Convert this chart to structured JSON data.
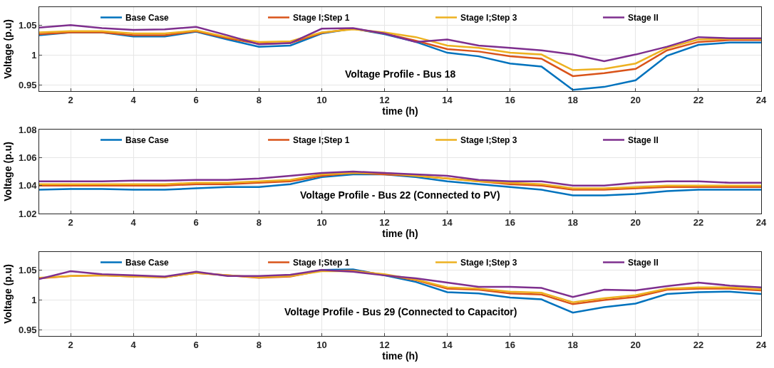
{
  "chart_data": [
    {
      "type": "line",
      "title": "Voltage Profile - Bus 18",
      "xlabel": "time (h)",
      "ylabel": "Voltage (p.u)",
      "x": [
        1,
        2,
        3,
        4,
        5,
        6,
        7,
        8,
        9,
        10,
        11,
        12,
        13,
        14,
        15,
        16,
        17,
        18,
        19,
        20,
        21,
        22,
        23,
        24
      ],
      "xlim": [
        1,
        24
      ],
      "xticks": [
        2,
        4,
        6,
        8,
        10,
        12,
        14,
        16,
        18,
        20,
        22,
        24
      ],
      "ylim": [
        0.94,
        1.08
      ],
      "yticks": [
        0.95,
        1,
        1.05
      ],
      "grid": true,
      "legend": "top",
      "series": [
        {
          "name": "Base Case",
          "color": "#0072bd",
          "values": [
            1.033,
            1.038,
            1.038,
            1.031,
            1.031,
            1.039,
            1.026,
            1.014,
            1.016,
            1.036,
            1.044,
            1.035,
            1.022,
            1.004,
            0.998,
            0.986,
            0.981,
            0.942,
            0.947,
            0.958,
            0.999,
            1.017,
            1.021,
            1.021
          ]
        },
        {
          "name": "Stage I;Step 1",
          "color": "#d95319",
          "values": [
            1.035,
            1.038,
            1.038,
            1.033,
            1.033,
            1.04,
            1.028,
            1.019,
            1.02,
            1.037,
            1.044,
            1.036,
            1.024,
            1.01,
            1.006,
            0.998,
            0.994,
            0.965,
            0.97,
            0.977,
            1.008,
            1.022,
            1.025,
            1.025
          ]
        },
        {
          "name": "Stage I;Step 3",
          "color": "#edb120",
          "values": [
            1.038,
            1.04,
            1.04,
            1.036,
            1.036,
            1.041,
            1.03,
            1.022,
            1.023,
            1.038,
            1.043,
            1.038,
            1.03,
            1.016,
            1.012,
            1.004,
            1.001,
            0.975,
            0.977,
            0.986,
            1.012,
            1.026,
            1.027,
            1.027
          ]
        },
        {
          "name": "Stage II",
          "color": "#7e2f8e",
          "values": [
            1.046,
            1.05,
            1.045,
            1.042,
            1.043,
            1.047,
            1.033,
            1.018,
            1.02,
            1.044,
            1.045,
            1.036,
            1.022,
            1.026,
            1.016,
            1.012,
            1.008,
            1.001,
            0.99,
            1.001,
            1.014,
            1.03,
            1.028,
            1.028
          ]
        }
      ]
    },
    {
      "type": "line",
      "title": "Voltage Profile - Bus 22 (Connected to PV)",
      "xlabel": "time (h)",
      "ylabel": "Voltage (p.u)",
      "x": [
        1,
        2,
        3,
        4,
        5,
        6,
        7,
        8,
        9,
        10,
        11,
        12,
        13,
        14,
        15,
        16,
        17,
        18,
        19,
        20,
        21,
        22,
        23,
        24
      ],
      "xlim": [
        1,
        24
      ],
      "xticks": [
        2,
        4,
        6,
        8,
        10,
        12,
        14,
        16,
        18,
        20,
        22,
        24
      ],
      "ylim": [
        1.02,
        1.08
      ],
      "yticks": [
        1.02,
        1.04,
        1.06,
        1.08
      ],
      "grid": true,
      "legend": "top",
      "series": [
        {
          "name": "Base Case",
          "color": "#0072bd",
          "values": [
            1.037,
            1.0375,
            1.0375,
            1.037,
            1.037,
            1.038,
            1.039,
            1.039,
            1.041,
            1.046,
            1.048,
            1.048,
            1.046,
            1.043,
            1.041,
            1.039,
            1.037,
            1.033,
            1.033,
            1.034,
            1.036,
            1.037,
            1.037,
            1.037
          ]
        },
        {
          "name": "Stage I;Step 1",
          "color": "#d95319",
          "values": [
            1.04,
            1.04,
            1.04,
            1.04,
            1.04,
            1.041,
            1.041,
            1.042,
            1.043,
            1.047,
            1.049,
            1.048,
            1.047,
            1.045,
            1.043,
            1.041,
            1.04,
            1.037,
            1.037,
            1.038,
            1.039,
            1.039,
            1.039,
            1.039
          ]
        },
        {
          "name": "Stage I;Step 3",
          "color": "#edb120",
          "values": [
            1.041,
            1.041,
            1.041,
            1.041,
            1.041,
            1.042,
            1.042,
            1.043,
            1.044,
            1.048,
            1.049,
            1.049,
            1.047,
            1.045,
            1.043,
            1.042,
            1.041,
            1.038,
            1.038,
            1.039,
            1.04,
            1.04,
            1.04,
            1.04
          ]
        },
        {
          "name": "Stage II",
          "color": "#7e2f8e",
          "values": [
            1.043,
            1.043,
            1.043,
            1.0435,
            1.0435,
            1.044,
            1.044,
            1.045,
            1.047,
            1.049,
            1.05,
            1.049,
            1.048,
            1.047,
            1.044,
            1.043,
            1.043,
            1.04,
            1.04,
            1.042,
            1.043,
            1.043,
            1.042,
            1.042
          ]
        }
      ]
    },
    {
      "type": "line",
      "title": "Voltage Profile - Bus 29 (Connected to Capacitor)",
      "xlabel": "time (h)",
      "ylabel": "Voltage (p.u)",
      "x": [
        1,
        2,
        3,
        4,
        5,
        6,
        7,
        8,
        9,
        10,
        11,
        12,
        13,
        14,
        15,
        16,
        17,
        18,
        19,
        20,
        21,
        22,
        23,
        24
      ],
      "xlim": [
        1,
        24
      ],
      "xticks": [
        2,
        4,
        6,
        8,
        10,
        12,
        14,
        16,
        18,
        20,
        22,
        24
      ],
      "ylim": [
        0.94,
        1.08
      ],
      "yticks": [
        0.95,
        1,
        1.05
      ],
      "grid": true,
      "legend": "top",
      "series": [
        {
          "name": "Base Case",
          "color": "#0072bd",
          "values": [
            null,
            null,
            null,
            null,
            null,
            null,
            null,
            null,
            1.04,
            1.05,
            1.051,
            1.041,
            1.03,
            1.013,
            1.011,
            1.004,
            1.001,
            0.979,
            0.988,
            0.994,
            1.01,
            1.013,
            1.014,
            1.01
          ]
        },
        {
          "name": "Stage I;Step 1",
          "color": "#d95319",
          "values": [
            1.036,
            1.04,
            1.041,
            1.039,
            1.038,
            1.045,
            1.041,
            1.037,
            1.039,
            1.049,
            1.049,
            1.042,
            1.033,
            1.019,
            1.017,
            1.011,
            1.009,
            0.993,
            1.0,
            1.005,
            1.017,
            1.019,
            1.019,
            1.016
          ]
        },
        {
          "name": "Stage I;Step 3",
          "color": "#edb120",
          "values": [
            1.037,
            1.04,
            1.041,
            1.039,
            1.038,
            1.045,
            1.041,
            1.038,
            1.04,
            1.048,
            1.048,
            1.043,
            1.034,
            1.021,
            1.019,
            1.014,
            1.012,
            0.996,
            1.003,
            1.008,
            1.019,
            1.021,
            1.021,
            1.018
          ]
        },
        {
          "name": "Stage II",
          "color": "#7e2f8e",
          "values": [
            1.035,
            1.048,
            1.043,
            1.041,
            1.039,
            1.047,
            1.04,
            1.04,
            1.042,
            1.05,
            1.047,
            1.041,
            1.036,
            1.029,
            1.022,
            1.022,
            1.02,
            1.005,
            1.017,
            1.016,
            1.023,
            1.029,
            1.024,
            1.021
          ]
        }
      ]
    }
  ]
}
